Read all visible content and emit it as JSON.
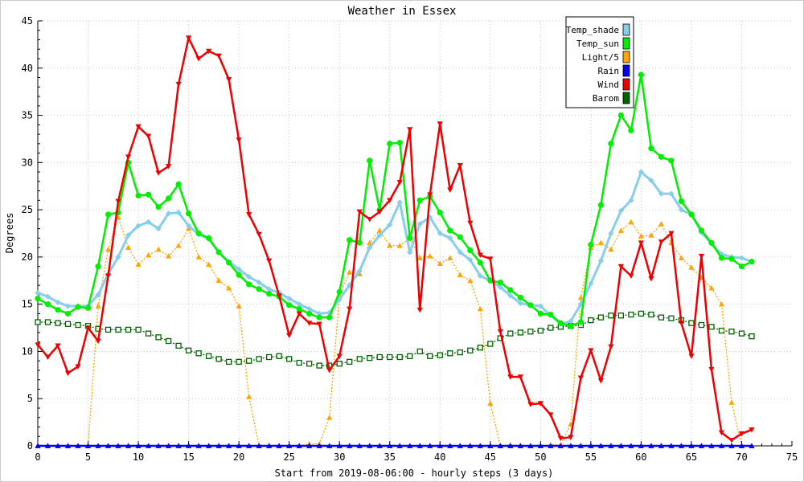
{
  "chart_data": {
    "type": "line",
    "title": "Weather in Essex",
    "xlabel": "Start from 2019-08-06:00 - hourly steps (3 days)",
    "ylabel": "Degrees",
    "xlim": [
      0,
      75
    ],
    "ylim": [
      0,
      45
    ],
    "x_ticks": [
      0,
      5,
      10,
      15,
      20,
      25,
      30,
      35,
      40,
      45,
      50,
      55,
      60,
      65,
      70,
      75
    ],
    "y_ticks": [
      0,
      5,
      10,
      15,
      20,
      25,
      30,
      35,
      40,
      45
    ],
    "grid": true,
    "legend_position": "top-right",
    "x": [
      0,
      1,
      2,
      3,
      4,
      5,
      6,
      7,
      8,
      9,
      10,
      11,
      12,
      13,
      14,
      15,
      16,
      17,
      18,
      19,
      20,
      21,
      22,
      23,
      24,
      25,
      26,
      27,
      28,
      29,
      30,
      31,
      32,
      33,
      34,
      35,
      36,
      37,
      38,
      39,
      40,
      41,
      42,
      43,
      44,
      45,
      46,
      47,
      48,
      49,
      50,
      51,
      52,
      53,
      54,
      55,
      56,
      57,
      58,
      59,
      60,
      61,
      62,
      63,
      64,
      65,
      66,
      67,
      68,
      69,
      70,
      71
    ],
    "series": [
      {
        "name": "Temp_shade",
        "color": "#87ceeb",
        "marker": "diamond",
        "line": "solid",
        "values": [
          16.2,
          15.8,
          15.2,
          14.8,
          14.8,
          14.8,
          16.0,
          18.2,
          20.0,
          22.3,
          23.3,
          23.7,
          23.0,
          24.6,
          24.7,
          23.3,
          22.4,
          21.9,
          20.5,
          19.5,
          18.7,
          17.9,
          17.3,
          16.6,
          16.2,
          15.6,
          15.0,
          14.5,
          14.0,
          14.1,
          15.5,
          17.0,
          18.5,
          21.0,
          22.3,
          23.4,
          25.8,
          20.5,
          23.5,
          24.2,
          22.5,
          22.0,
          20.5,
          19.7,
          18.0,
          17.5,
          16.8,
          15.9,
          15.1,
          14.9,
          14.8,
          13.8,
          12.9,
          13.2,
          15.0,
          17.2,
          19.6,
          22.5,
          24.9,
          26.0,
          29.0,
          28.1,
          26.7,
          26.7,
          25.0,
          24.5,
          22.6,
          21.4,
          20.3,
          20.0,
          19.9,
          19.5
        ]
      },
      {
        "name": "Temp_sun",
        "color": "#00ee00",
        "marker": "circle",
        "line": "solid",
        "values": [
          15.6,
          15.0,
          14.4,
          14.0,
          14.7,
          14.6,
          19.0,
          24.5,
          24.7,
          30.0,
          26.5,
          26.6,
          25.3,
          26.2,
          27.7,
          24.6,
          22.5,
          22.0,
          20.5,
          19.4,
          18.1,
          17.1,
          16.6,
          16.1,
          15.8,
          14.9,
          14.5,
          14.0,
          13.6,
          13.6,
          16.3,
          21.8,
          21.5,
          30.2,
          25.0,
          32.0,
          32.1,
          22.0,
          26.0,
          26.4,
          24.7,
          22.8,
          22.1,
          20.7,
          19.4,
          17.5,
          17.3,
          16.5,
          15.7,
          14.9,
          14.0,
          13.9,
          13.0,
          12.7,
          13.1,
          21.3,
          25.5,
          32.0,
          35.0,
          33.4,
          39.3,
          31.5,
          30.6,
          30.2,
          25.9,
          24.5,
          22.8,
          21.5,
          19.9,
          19.8,
          19.0,
          19.5
        ]
      },
      {
        "name": "Light/5",
        "color": "#ffa500",
        "marker": "triangle",
        "line": "dotted",
        "values": [
          0,
          0,
          0,
          0,
          0,
          0,
          14.8,
          20.8,
          24.2,
          21.0,
          19.2,
          20.2,
          20.8,
          20.1,
          21.2,
          23.0,
          20.0,
          19.2,
          17.5,
          16.7,
          14.8,
          5.2,
          0,
          0,
          0,
          0,
          0,
          0.2,
          0.2,
          3.0,
          15.9,
          18.4,
          18.2,
          21.5,
          22.8,
          21.2,
          21.2,
          22.0,
          19.9,
          20.1,
          19.3,
          19.9,
          18.1,
          17.5,
          14.5,
          4.5,
          0,
          0.1,
          0,
          0,
          0,
          0.1,
          0.1,
          2.3,
          15.7,
          21.0,
          21.5,
          20.8,
          22.8,
          23.7,
          22.2,
          22.3,
          23.5,
          21.5,
          19.9,
          18.9,
          17.8,
          16.7,
          15.0,
          4.6,
          0,
          0
        ]
      },
      {
        "name": "Rain",
        "color": "#0000ee",
        "marker": "triangle",
        "line": "solid",
        "values": [
          0,
          0,
          0,
          0,
          0,
          0,
          0,
          0,
          0,
          0,
          0,
          0,
          0,
          0,
          0,
          0,
          0,
          0,
          0,
          0,
          0,
          0,
          0,
          0,
          0,
          0,
          0,
          0,
          0,
          0,
          0,
          0,
          0,
          0,
          0,
          0,
          0,
          0,
          0,
          0,
          0,
          0,
          0,
          0,
          0,
          0,
          0,
          0,
          0,
          0,
          0,
          0,
          0,
          0,
          0,
          0,
          0,
          0,
          0,
          0,
          0,
          0,
          0,
          0,
          0,
          0,
          0,
          0,
          0,
          0,
          0,
          0
        ]
      },
      {
        "name": "Wind",
        "color": "#ee0000",
        "marker": "triangle-down",
        "line": "solid",
        "values": [
          10.7,
          9.4,
          10.6,
          7.7,
          8.4,
          12.5,
          11.1,
          18.0,
          25.9,
          30.6,
          33.8,
          32.8,
          28.9,
          29.6,
          38.3,
          43.2,
          41.0,
          41.8,
          41.3,
          38.8,
          32.4,
          24.5,
          22.4,
          19.6,
          15.9,
          11.7,
          14.0,
          13.0,
          12.9,
          8.0,
          9.5,
          14.5,
          24.8,
          24.0,
          24.8,
          26.0,
          27.9,
          33.5,
          14.4,
          26.6,
          34.1,
          27.1,
          29.7,
          23.6,
          20.2,
          19.8,
          12.1,
          7.3,
          7.3,
          4.4,
          4.5,
          3.3,
          0.8,
          0.9,
          7.2,
          10.1,
          6.9,
          10.5,
          19.0,
          18.0,
          21.5,
          17.7,
          21.6,
          22.5,
          13.0,
          9.5,
          20.1,
          8.1,
          1.4,
          0.6,
          1.3,
          1.7
        ]
      },
      {
        "name": "Barom",
        "color": "#006400",
        "marker": "square",
        "line": "dotted",
        "values": [
          13.1,
          13.1,
          13.0,
          12.9,
          12.8,
          12.7,
          12.4,
          12.3,
          12.3,
          12.3,
          12.3,
          11.9,
          11.5,
          11.1,
          10.6,
          10.1,
          9.8,
          9.5,
          9.2,
          8.9,
          8.9,
          9.0,
          9.2,
          9.4,
          9.5,
          9.2,
          8.8,
          8.7,
          8.5,
          8.5,
          8.7,
          8.9,
          9.2,
          9.3,
          9.4,
          9.4,
          9.4,
          9.5,
          10.0,
          9.5,
          9.6,
          9.8,
          9.9,
          10.1,
          10.4,
          10.8,
          11.4,
          11.9,
          12.0,
          12.1,
          12.2,
          12.5,
          12.6,
          12.7,
          12.8,
          13.3,
          13.6,
          13.8,
          13.8,
          13.9,
          14.0,
          13.9,
          13.6,
          13.5,
          13.3,
          13.0,
          12.8,
          12.6,
          12.2,
          12.1,
          11.9,
          11.6
        ]
      }
    ]
  }
}
